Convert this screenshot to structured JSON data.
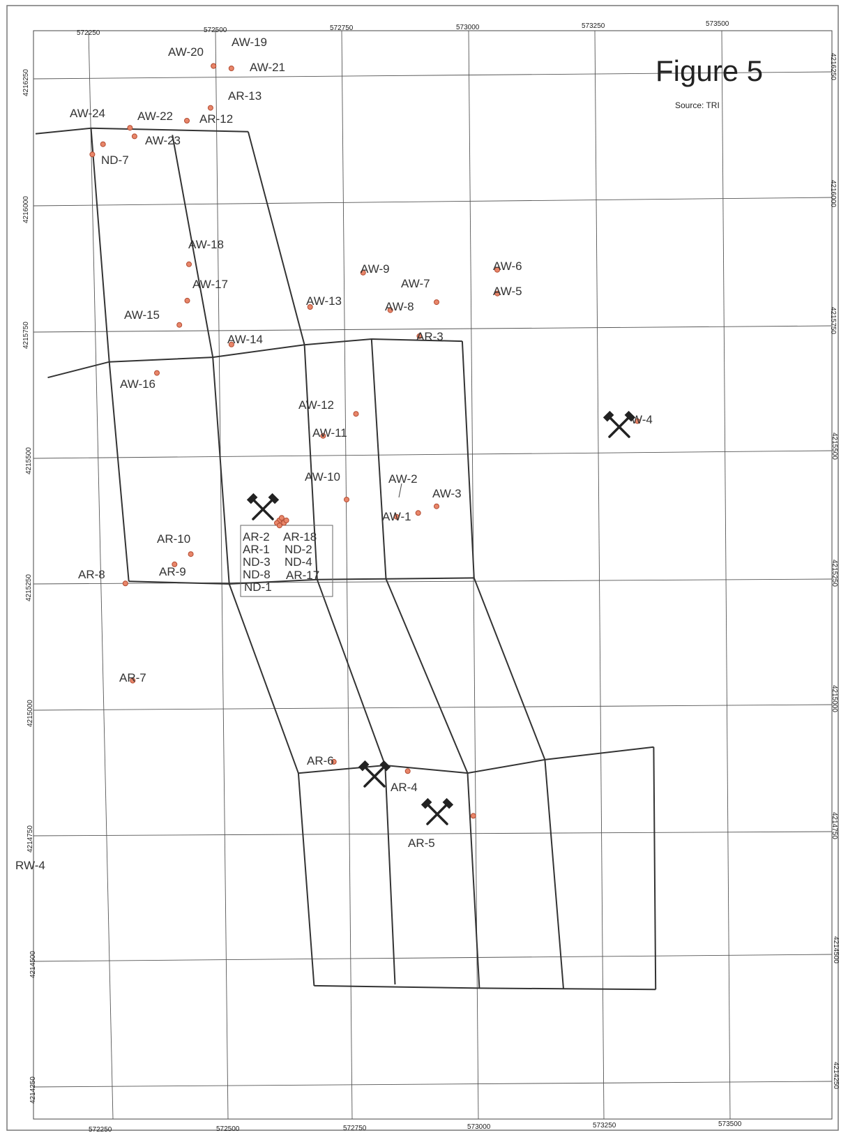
{
  "figure": {
    "title": "Figure 5",
    "source": "Source: TRI"
  },
  "grid": {
    "x_labels": [
      "572250",
      "572500",
      "572750",
      "573000",
      "573250",
      "573500"
    ],
    "y_labels": [
      "4216250",
      "4216000",
      "4215750",
      "4215500",
      "4215250",
      "4215000",
      "4214750",
      "4214500",
      "4214250"
    ]
  },
  "colors": {
    "point_fill": "#e8866a",
    "point_stroke": "#b24a30",
    "line": "#333333",
    "grid": "#555555"
  },
  "points": [
    {
      "id": "AW-20",
      "x": 572498,
      "y": 4216273
    },
    {
      "id": "AW-19",
      "x": 572498,
      "y": 4216273
    },
    {
      "id": "AW-21",
      "x": 572533,
      "y": 4216268
    },
    {
      "id": "AR-13",
      "x": 572488,
      "y": 4216190
    },
    {
      "id": "AR-12",
      "x": 572440,
      "y": 4216165
    },
    {
      "id": "AW-22",
      "x": 572327,
      "y": 4216152
    },
    {
      "id": "AW-24",
      "x": 572272,
      "y": 4216120
    },
    {
      "id": "AW-23",
      "x": 572335,
      "y": 4216135
    },
    {
      "id": "ND-7",
      "x": 572250,
      "y": 4216100
    },
    {
      "id": "AW-18",
      "x": 572430,
      "y": 4215880
    },
    {
      "id": "AW-17",
      "x": 572423,
      "y": 4215808
    },
    {
      "id": "AW-15",
      "x": 572405,
      "y": 4215760
    },
    {
      "id": "AW-16",
      "x": 572356,
      "y": 4215665
    },
    {
      "id": "AW-14",
      "x": 572506,
      "y": 4215720
    },
    {
      "id": "AW-13",
      "x": 572665,
      "y": 4215793
    },
    {
      "id": "AW-9",
      "x": 572773,
      "y": 4215860
    },
    {
      "id": "AW-8",
      "x": 572823,
      "y": 4215785
    },
    {
      "id": "AW-7",
      "x": 572915,
      "y": 4215800
    },
    {
      "id": "AW-6",
      "x": 573038,
      "y": 4215863
    },
    {
      "id": "AW-5",
      "x": 573036,
      "y": 4215816
    },
    {
      "id": "AR-3",
      "x": 572878,
      "y": 4215733
    },
    {
      "id": "AW-12",
      "x": 572745,
      "y": 4215580
    },
    {
      "id": "AW-11",
      "x": 572678,
      "y": 4215537
    },
    {
      "id": "AW-10",
      "x": 572718,
      "y": 4215410
    },
    {
      "id": "AW-2",
      "x": 572858,
      "y": 4215382
    },
    {
      "id": "AW-1",
      "x": 572815,
      "y": 4215375
    },
    {
      "id": "AW-3",
      "x": 572895,
      "y": 4215395
    },
    {
      "id": "AW-4",
      "x": 573300,
      "y": 4215560
    },
    {
      "id": "AR-10",
      "x": 572405,
      "y": 4215305
    },
    {
      "id": "AR-9",
      "x": 572372,
      "y": 4215285
    },
    {
      "id": "AR-8",
      "x": 572273,
      "y": 4215248
    },
    {
      "id": "AR-7",
      "x": 572278,
      "y": 4215055
    },
    {
      "id": "AR-6",
      "x": 572667,
      "y": 4214890
    },
    {
      "id": "AR-4",
      "x": 572812,
      "y": 4214870
    },
    {
      "id": "AR-5",
      "x": 572937,
      "y": 4214780
    },
    {
      "id": "AR-2",
      "x": 572583,
      "y": 4215370
    },
    {
      "id": "AR-18",
      "x": 572588,
      "y": 4215375
    },
    {
      "id": "AR-1",
      "x": 572578,
      "y": 4215365
    },
    {
      "id": "ND-2",
      "x": 572592,
      "y": 4215365
    },
    {
      "id": "ND-3",
      "x": 572583,
      "y": 4215360
    },
    {
      "id": "ND-4",
      "x": 572597,
      "y": 4215370
    }
  ],
  "labels": [
    {
      "text": "AW-20"
    },
    {
      "text": "AW-19"
    },
    {
      "text": "AW-21"
    },
    {
      "text": "AR-13"
    },
    {
      "text": "AW-24"
    },
    {
      "text": "AW-22"
    },
    {
      "text": "AR-12"
    },
    {
      "text": "AW-23"
    },
    {
      "text": "ND-7"
    },
    {
      "text": "AW-18"
    },
    {
      "text": "AW-17"
    },
    {
      "text": "AW-15"
    },
    {
      "text": "AW-14"
    },
    {
      "text": "AW-16"
    },
    {
      "text": "AW-13"
    },
    {
      "text": "AW-9"
    },
    {
      "text": "AW-7"
    },
    {
      "text": "AW-8"
    },
    {
      "text": "AW-6"
    },
    {
      "text": "AW-5"
    },
    {
      "text": "AR-3"
    },
    {
      "text": "AW-12"
    },
    {
      "text": "AW-11"
    },
    {
      "text": "AW-10"
    },
    {
      "text": "AW-2"
    },
    {
      "text": "AW-3"
    },
    {
      "text": "AW-1"
    },
    {
      "text": "W-4"
    },
    {
      "text": "AR-10"
    },
    {
      "text": "AR-9"
    },
    {
      "text": "AR-8"
    },
    {
      "text": "AR-7"
    },
    {
      "text": "AR-6"
    },
    {
      "text": "AR-4"
    },
    {
      "text": "AR-5"
    },
    {
      "text": "RW-4"
    }
  ],
  "cluster_labels": [
    "AR-2",
    "AR-18",
    "AR-1",
    "ND-2",
    "ND-3",
    "ND-4",
    "ND-8",
    "AR-17",
    "ND-1"
  ],
  "mine_symbols": [
    {
      "name": "mine-cluster"
    },
    {
      "name": "mine-aw4"
    },
    {
      "name": "mine-ar4"
    },
    {
      "name": "mine-ar5"
    }
  ],
  "lines": [
    {
      "points": [
        [
          572140,
          4216142
        ],
        [
          572250,
          4216152
        ],
        [
          572560,
          4216142
        ]
      ]
    },
    {
      "points": [
        [
          572250,
          4216152
        ],
        [
          572263,
          4215688
        ],
        [
          572280,
          4215252
        ]
      ]
    },
    {
      "points": [
        [
          572410,
          4216137
        ],
        [
          572468,
          4215695
        ],
        [
          572478,
          4215245
        ]
      ]
    },
    {
      "points": [
        [
          572560,
          4216142
        ],
        [
          572650,
          4215718
        ],
        [
          572652,
          4215252
        ]
      ]
    },
    {
      "points": [
        [
          572783,
          4215728
        ],
        [
          572788,
          4215252
        ]
      ]
    },
    {
      "points": [
        [
          572140,
          4215658
        ],
        [
          572263,
          4215688
        ],
        [
          572468,
          4215695
        ],
        [
          572650,
          4215718
        ],
        [
          572783,
          4215728
        ],
        [
          572962,
          4215722
        ]
      ]
    },
    {
      "points": [
        [
          572962,
          4215722
        ],
        [
          572962,
          4215252
        ]
      ]
    },
    {
      "points": [
        [
          572280,
          4215252
        ],
        [
          572478,
          4215245
        ],
        [
          572652,
          4215252
        ],
        [
          572788,
          4215252
        ],
        [
          572962,
          4215252
        ]
      ]
    },
    {
      "points": [
        [
          572478,
          4215245
        ],
        [
          572596,
          4214868
        ]
      ]
    },
    {
      "points": [
        [
          572652,
          4215252
        ],
        [
          572768,
          4214882
        ]
      ]
    },
    {
      "points": [
        [
          572788,
          4215252
        ],
        [
          572930,
          4214865
        ]
      ]
    },
    {
      "points": [
        [
          572962,
          4215252
        ],
        [
          573084,
          4214890
        ]
      ]
    },
    {
      "points": [
        [
          572596,
          4214868
        ],
        [
          572768,
          4214882
        ],
        [
          572930,
          4214865
        ],
        [
          573084,
          4214890
        ],
        [
          573300,
          4214913
        ]
      ]
    },
    {
      "points": [
        [
          572596,
          4214868
        ],
        [
          572606,
          4214446
        ]
      ]
    },
    {
      "points": [
        [
          572768,
          4214882
        ],
        [
          572766,
          4214447
        ]
      ]
    },
    {
      "points": [
        [
          572930,
          4214865
        ],
        [
          572932,
          4214438
        ]
      ]
    },
    {
      "points": [
        [
          573084,
          4214890
        ],
        [
          573098,
          4214435
        ]
      ]
    },
    {
      "points": [
        [
          573300,
          4214913
        ],
        [
          573280,
          4214432
        ]
      ]
    },
    {
      "points": [
        [
          572606,
          4214446
        ],
        [
          572932,
          4214438
        ],
        [
          573280,
          4214432
        ]
      ]
    }
  ]
}
